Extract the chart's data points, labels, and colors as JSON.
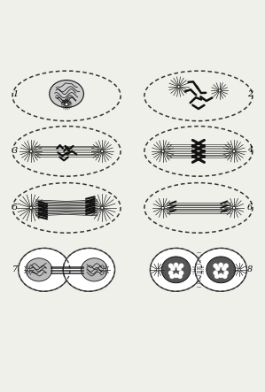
{
  "bg_color": "#f0f0eb",
  "dark_color": "#111111",
  "figsize": [
    2.99,
    4.43
  ],
  "dpi": 100
}
